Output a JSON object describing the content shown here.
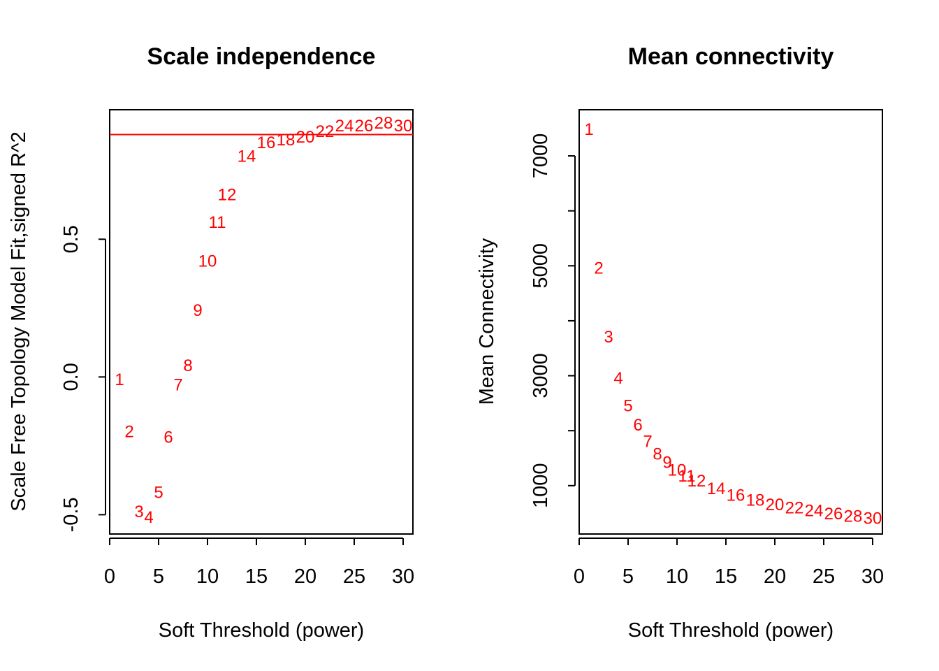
{
  "colors": {
    "points": "#ff0000",
    "hline": "#ff0000",
    "axis": "#000000"
  },
  "chart_data": [
    {
      "type": "scatter",
      "title": "Scale independence",
      "xlabel": "Soft Threshold (power)",
      "ylabel": "Scale Free Topology Model Fit,signed R^2",
      "xlim": [
        0,
        31
      ],
      "ylim": [
        -0.57,
        0.97
      ],
      "x_ticks": [
        0,
        5,
        10,
        15,
        20,
        25,
        30
      ],
      "x_tick_labels": [
        "0",
        "5",
        "10",
        "15",
        "20",
        "25",
        "30"
      ],
      "y_ticks": [
        -0.5,
        0.0,
        0.5
      ],
      "y_tick_labels": [
        "-0.5",
        "0.0",
        "0.5"
      ],
      "hline": 0.88,
      "point_labels": [
        "1",
        "2",
        "3",
        "4",
        "5",
        "6",
        "7",
        "8",
        "9",
        "10",
        "11",
        "12",
        "14",
        "16",
        "18",
        "20",
        "22",
        "24",
        "26",
        "28",
        "30"
      ],
      "x": [
        1,
        2,
        3,
        4,
        5,
        6,
        7,
        8,
        9,
        10,
        11,
        12,
        14,
        16,
        18,
        20,
        22,
        24,
        26,
        28,
        30
      ],
      "y": [
        -0.01,
        -0.2,
        -0.49,
        -0.51,
        -0.42,
        -0.22,
        -0.03,
        0.04,
        0.24,
        0.42,
        0.56,
        0.66,
        0.8,
        0.85,
        0.86,
        0.87,
        0.89,
        0.91,
        0.91,
        0.92,
        0.91
      ],
      "grid": false
    },
    {
      "type": "scatter",
      "title": "Mean connectivity",
      "xlabel": "Soft Threshold (power)",
      "ylabel": "Mean Connectivity",
      "xlim": [
        0,
        31
      ],
      "ylim": [
        120,
        7840
      ],
      "x_ticks": [
        0,
        5,
        10,
        15,
        20,
        25,
        30
      ],
      "x_tick_labels": [
        "0",
        "5",
        "10",
        "15",
        "20",
        "25",
        "30"
      ],
      "y_ticks": [
        1000,
        2000,
        3000,
        4000,
        5000,
        6000,
        7000
      ],
      "y_tick_labels": [
        "1000",
        "",
        "3000",
        "",
        "5000",
        "",
        "7000"
      ],
      "point_labels": [
        "1",
        "2",
        "3",
        "4",
        "5",
        "6",
        "7",
        "8",
        "9",
        "10",
        "11",
        "12",
        "14",
        "16",
        "18",
        "20",
        "22",
        "24",
        "26",
        "28",
        "30"
      ],
      "x": [
        1,
        2,
        3,
        4,
        5,
        6,
        7,
        8,
        9,
        10,
        11,
        12,
        14,
        16,
        18,
        20,
        22,
        24,
        26,
        28,
        30
      ],
      "y": [
        7480,
        4950,
        3700,
        2950,
        2450,
        2100,
        1800,
        1570,
        1420,
        1280,
        1170,
        1080,
        940,
        820,
        730,
        650,
        590,
        540,
        480,
        440,
        400
      ],
      "grid": false
    }
  ]
}
